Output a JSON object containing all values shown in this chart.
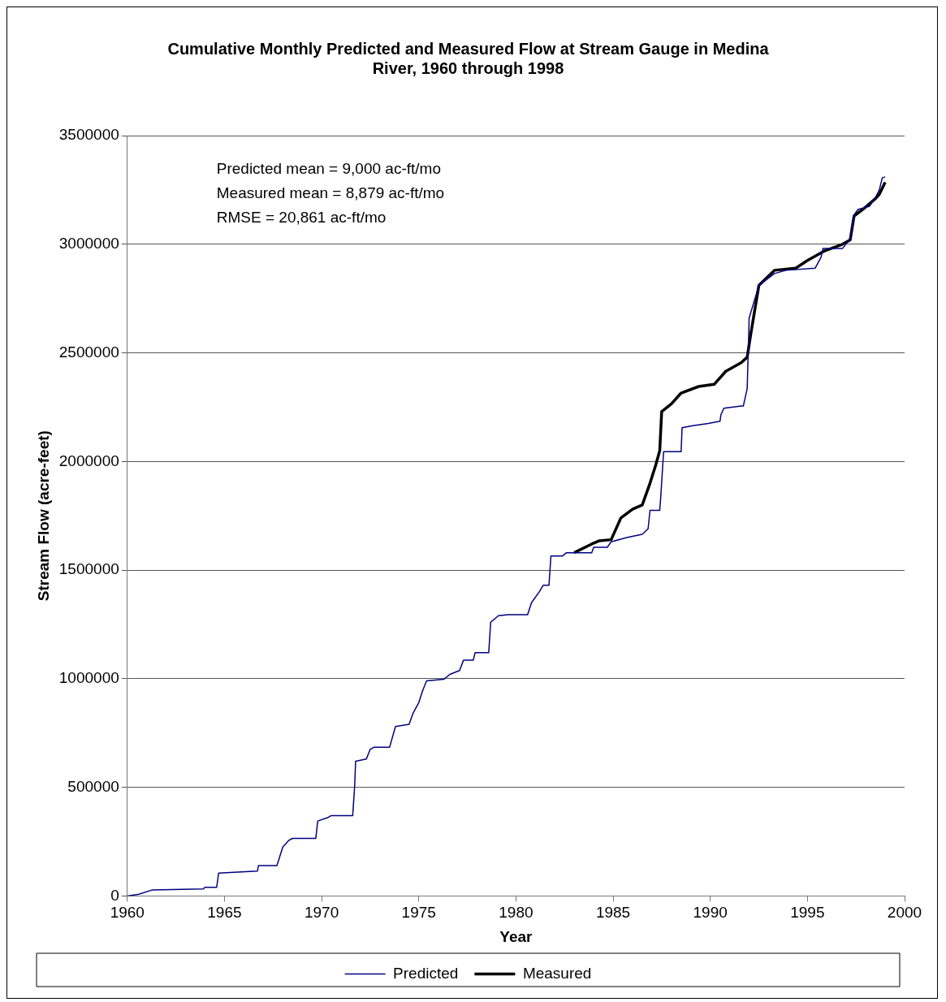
{
  "chart_data": {
    "type": "line",
    "title": "Cumulative Monthly Predicted and Measured Flow at Stream Gauge in Medina River, 1960 through 1998",
    "xlabel": "Year",
    "ylabel": "Stream Flow (acre-feet)",
    "xlim": [
      1960,
      2000
    ],
    "xticks": [
      1960,
      1965,
      1970,
      1975,
      1980,
      1985,
      1990,
      1995,
      2000
    ],
    "ylim": [
      0,
      3500000
    ],
    "yticks": [
      0,
      500000,
      1000000,
      1500000,
      2000000,
      2500000,
      3000000,
      3500000
    ],
    "grid": "y",
    "legend": "bottom",
    "marker": "none",
    "line_style": "solid",
    "annotations": [
      "Predicted mean = 9,000 ac-ft/mo",
      "Measured mean = 8,879 ac-ft/mo",
      "RMSE = 20,861 ac-ft/mo"
    ],
    "series": [
      {
        "name": "Predicted",
        "color": "#000080",
        "x": [
          1960,
          1960.6,
          1961.3,
          1963.9,
          1964,
          1964.6,
          1964.7,
          1966.7,
          1966.75,
          1967.7,
          1968,
          1968.3,
          1968.5,
          1969.7,
          1969.8,
          1970.3,
          1970.5,
          1971.6,
          1971.7,
          1971.75,
          1972.3,
          1972.5,
          1972.7,
          1973.5,
          1973.8,
          1974.5,
          1974.7,
          1975,
          1975.2,
          1975.4,
          1976.3,
          1976.6,
          1977.1,
          1977.3,
          1977.8,
          1977.9,
          1978.6,
          1978.7,
          1979.1,
          1979.6,
          1980.6,
          1980.8,
          1981.2,
          1981.4,
          1981.7,
          1981.8,
          1982.4,
          1982.6,
          1983.9,
          1984,
          1984.7,
          1984.9,
          1985.7,
          1986.5,
          1986.8,
          1986.9,
          1987.4,
          1987.45,
          1987.6,
          1988.5,
          1988.55,
          1989.1,
          1989.9,
          1990.5,
          1990.55,
          1990.7,
          1991.6,
          1991.7,
          1991.8,
          1991.9,
          1992,
          1992.5,
          1993.3,
          1993.9,
          1995.4,
          1995.7,
          1995.8,
          1996.8,
          1997.2,
          1997.4,
          1997.6,
          1998.2,
          1998.5,
          1998.7,
          1998.85,
          1999
        ],
        "values": [
          0,
          8000,
          28000,
          32000,
          40000,
          40000,
          105000,
          115000,
          140000,
          140000,
          225000,
          255000,
          265000,
          265000,
          345000,
          360000,
          370000,
          370000,
          505000,
          620000,
          630000,
          675000,
          685000,
          685000,
          780000,
          790000,
          840000,
          890000,
          945000,
          990000,
          998000,
          1020000,
          1038000,
          1085000,
          1085000,
          1120000,
          1120000,
          1260000,
          1290000,
          1295000,
          1295000,
          1350000,
          1400000,
          1430000,
          1430000,
          1565000,
          1565000,
          1580000,
          1580000,
          1605000,
          1605000,
          1630000,
          1650000,
          1665000,
          1690000,
          1775000,
          1775000,
          1835000,
          2045000,
          2045000,
          2155000,
          2165000,
          2175000,
          2185000,
          2215000,
          2245000,
          2255000,
          2255000,
          2295000,
          2335000,
          2660000,
          2810000,
          2865000,
          2880000,
          2890000,
          2940000,
          2980000,
          2980000,
          3025000,
          3135000,
          3160000,
          3175000,
          3215000,
          3250000,
          3305000,
          3310000
        ]
      },
      {
        "name": "Measured",
        "color": "#000000",
        "x": [
          1983,
          1983.9,
          1984.3,
          1984.9,
          1985.4,
          1986,
          1986.5,
          1986.9,
          1987.2,
          1987.4,
          1987.5,
          1988,
          1988.5,
          1989.4,
          1990.2,
          1990.8,
          1991.6,
          1991.9,
          1992.1,
          1992.5,
          1993.3,
          1994.4,
          1995,
          1995.9,
          1996.8,
          1997.2,
          1997.4,
          1997.85,
          1998.5,
          1998.7,
          1999
        ],
        "values": [
          1580000,
          1620000,
          1635000,
          1640000,
          1740000,
          1780000,
          1800000,
          1900000,
          1985000,
          2050000,
          2230000,
          2265000,
          2315000,
          2345000,
          2355000,
          2415000,
          2455000,
          2480000,
          2595000,
          2810000,
          2880000,
          2890000,
          2925000,
          2970000,
          3000000,
          3020000,
          3130000,
          3160000,
          3210000,
          3230000,
          3285000
        ]
      }
    ]
  }
}
